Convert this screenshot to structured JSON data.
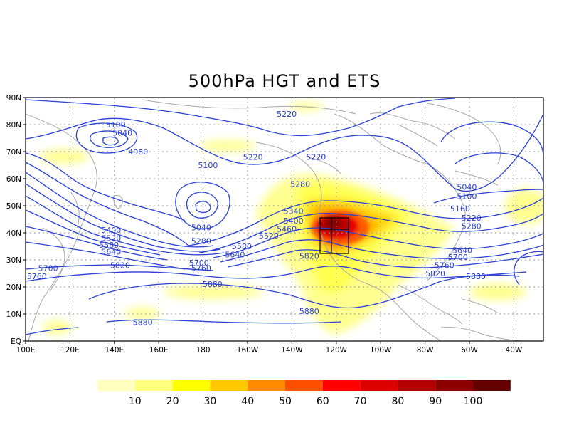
{
  "title": "500hPa HGT and ETS",
  "lat_ticks": [
    "90N",
    "80N",
    "70N",
    "60N",
    "50N",
    "40N",
    "30N",
    "20N",
    "10N",
    "EQ"
  ],
  "lon_ticks": [
    "100E",
    "120E",
    "140E",
    "160E",
    "180",
    "160W",
    "140W",
    "120W",
    "100W",
    "80W",
    "60W",
    "40W"
  ],
  "contour_labels": [
    {
      "text": "5100",
      "lon": 140,
      "lat": 80
    },
    {
      "text": "5040",
      "lon": 143,
      "lat": 77
    },
    {
      "text": "4980",
      "lon": 150,
      "lat": 70
    },
    {
      "text": "5100",
      "lon": 181,
      "lat": 65
    },
    {
      "text": "5220",
      "lon": 216,
      "lat": 84
    },
    {
      "text": "5220",
      "lon": 201,
      "lat": 68
    },
    {
      "text": "5220",
      "lon": 229,
      "lat": 68
    },
    {
      "text": "5280",
      "lon": 222,
      "lat": 58
    },
    {
      "text": "5340",
      "lon": 219,
      "lat": 48
    },
    {
      "text": "5400",
      "lon": 219,
      "lat": 44.5
    },
    {
      "text": "5460",
      "lon": 216,
      "lat": 41.5
    },
    {
      "text": "5520",
      "lon": 208,
      "lat": 39
    },
    {
      "text": "5580",
      "lon": 196,
      "lat": 35
    },
    {
      "text": "5640",
      "lon": 193,
      "lat": 32
    },
    {
      "text": "5700",
      "lon": 177,
      "lat": 29
    },
    {
      "text": "5760",
      "lon": 178,
      "lat": 27
    },
    {
      "text": "5820",
      "lon": 226,
      "lat": 31.5
    },
    {
      "text": "5880",
      "lon": 183,
      "lat": 21
    },
    {
      "text": "5880",
      "lon": 226,
      "lat": 11
    },
    {
      "text": "5880",
      "lon": 152,
      "lat": 7
    },
    {
      "text": "5820",
      "lon": 142,
      "lat": 28
    },
    {
      "text": "5040",
      "lon": 178,
      "lat": 42
    },
    {
      "text": "5280",
      "lon": 178,
      "lat": 37
    },
    {
      "text": "5400",
      "lon": 138,
      "lat": 41
    },
    {
      "text": "5520",
      "lon": 138,
      "lat": 38
    },
    {
      "text": "5580",
      "lon": 137,
      "lat": 35.5
    },
    {
      "text": "5640",
      "lon": 138,
      "lat": 33
    },
    {
      "text": "5700",
      "lon": 110,
      "lat": 27
    },
    {
      "text": "5760",
      "lon": 105,
      "lat": 24
    },
    {
      "text": "5040",
      "lon": 296,
      "lat": 57
    },
    {
      "text": "5100",
      "lon": 296,
      "lat": 53.5
    },
    {
      "text": "5160",
      "lon": 293,
      "lat": 49
    },
    {
      "text": "5220",
      "lon": 298,
      "lat": 45.5
    },
    {
      "text": "5280",
      "lon": 298,
      "lat": 42.5
    },
    {
      "text": "5640",
      "lon": 294,
      "lat": 33.5
    },
    {
      "text": "5700",
      "lon": 292,
      "lat": 31
    },
    {
      "text": "5760",
      "lon": 286,
      "lat": 28
    },
    {
      "text": "5820",
      "lon": 282,
      "lat": 25
    },
    {
      "text": "5880",
      "lon": 300,
      "lat": 24
    }
  ],
  "colorbar": {
    "colors": [
      "#ffffc0",
      "#ffff80",
      "#ffff00",
      "#ffc800",
      "#ff8c00",
      "#ff5000",
      "#ff0000",
      "#dc0000",
      "#b40000",
      "#8c0000",
      "#640000"
    ],
    "labels": [
      "10",
      "20",
      "30",
      "40",
      "50",
      "60",
      "70",
      "80",
      "90",
      "100"
    ]
  },
  "colors": {
    "contour": "#2a3fd6",
    "coast": "#a8a8a8",
    "grid": "#9a9a9a",
    "box": "#000000"
  }
}
